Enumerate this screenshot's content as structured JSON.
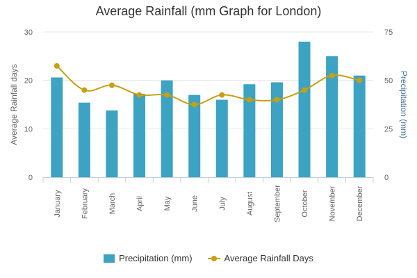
{
  "chart_data": {
    "type": "bar",
    "title": "Average Rainfall (mm Graph for London)",
    "categories": [
      "January",
      "February",
      "March",
      "April",
      "May",
      "June",
      "July",
      "August",
      "September",
      "October",
      "November",
      "December"
    ],
    "y_left": {
      "label": "Average Rainfall days",
      "ticks": [
        "0",
        "10",
        "20",
        "30"
      ],
      "range": [
        0,
        30
      ]
    },
    "y_right": {
      "label": "Precipitation (mm)",
      "ticks": [
        "0",
        "25",
        "50",
        "75"
      ],
      "range": [
        0,
        75
      ]
    },
    "grid": true,
    "legend_position": "bottom-center",
    "series": [
      {
        "name": "Precipitation (mm)",
        "type": "bar",
        "axis": "right",
        "color": "#3ba3c3",
        "values": [
          51.5,
          38.5,
          34.5,
          43,
          50,
          42.5,
          40,
          48,
          49,
          70,
          62.5,
          52.5
        ]
      },
      {
        "name": "Average Rainfall Days",
        "type": "line",
        "axis": "left",
        "color": "#c9a00c",
        "values": [
          23,
          18,
          19,
          17,
          17,
          15,
          17,
          16,
          16,
          18,
          21,
          20
        ]
      }
    ]
  }
}
